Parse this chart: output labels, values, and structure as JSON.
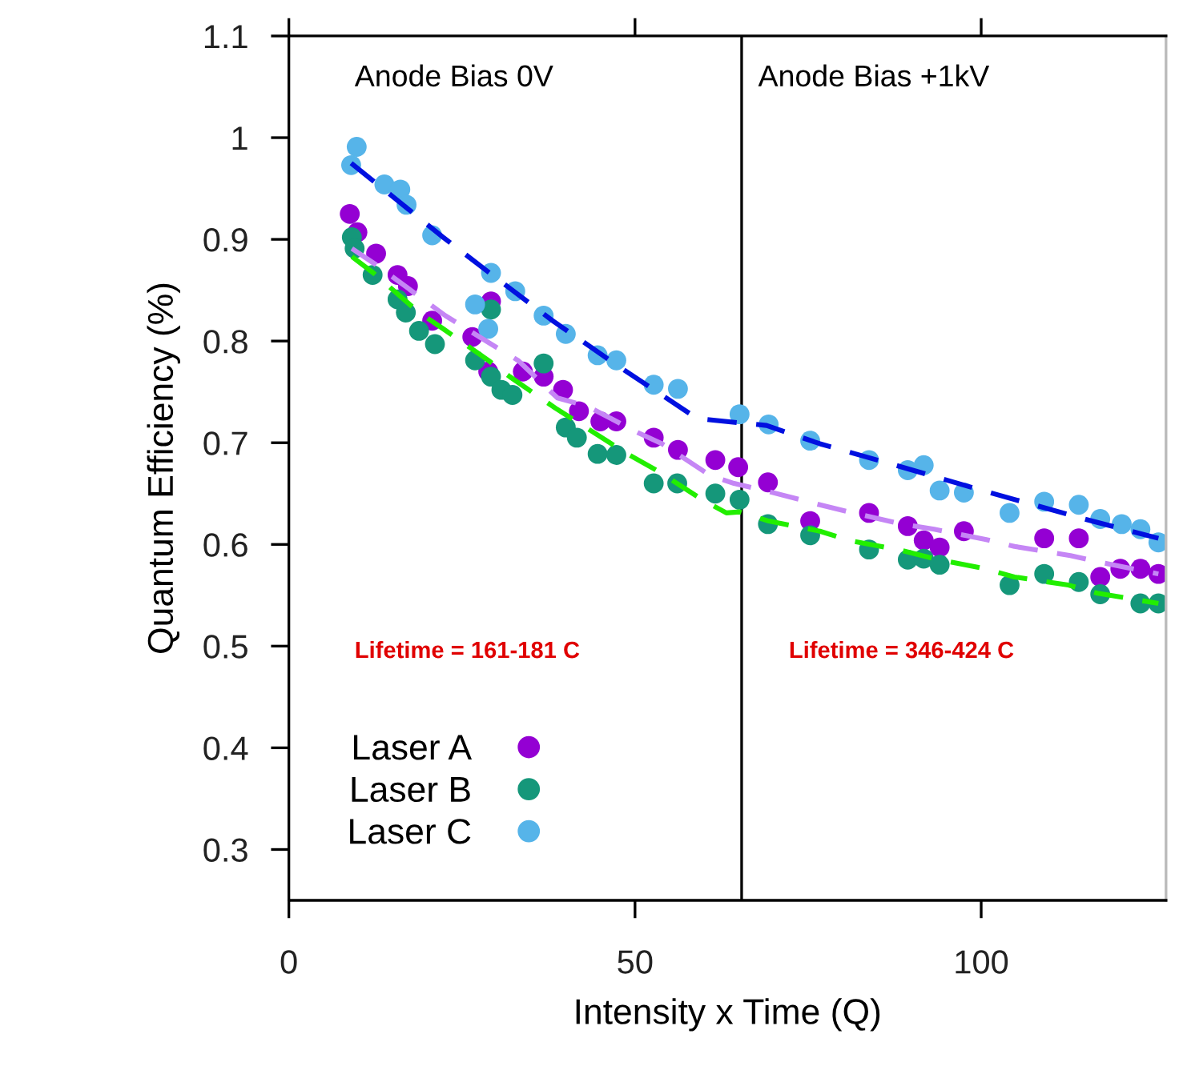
{
  "chart_data": {
    "type": "scatter",
    "xlabel": "Intensity x Time (Q)",
    "ylabel": "Quantum Efficiency (%)",
    "xlim": [
      0,
      126.7
    ],
    "ylim": [
      0.25,
      1.1
    ],
    "xticks": [
      0,
      50,
      100
    ],
    "yticks": [
      0.3,
      0.4,
      0.5,
      0.6,
      0.7,
      0.8,
      0.9,
      1,
      1.1
    ],
    "tick_labels": "xy",
    "grid": false,
    "legend": "bottom left",
    "marker": "circle",
    "ref_lines": [
      {
        "axis": "x",
        "value": 65.4,
        "color": "#000000"
      }
    ],
    "annotations": [
      "Anode Bias 0V",
      "Anode Bias +1kV",
      "Lifetime = 161-181 C",
      "Lifetime = 346-424 C"
    ],
    "series": [
      {
        "name": "Laser A",
        "color": "#9400d3",
        "x": [
          8.8,
          9.9,
          12.6,
          15.7,
          17.2,
          20.7,
          26.5,
          29.2,
          28.8,
          33.8,
          36.8,
          39.6,
          41.9,
          45.0,
          47.3,
          52.7,
          56.2,
          61.6,
          64.9,
          69.2,
          75.3,
          83.8,
          89.4,
          91.7,
          94.0,
          97.5,
          109.1,
          114.1,
          117.2,
          120.1,
          123.0,
          125.6
        ],
        "values": [
          0.925,
          0.907,
          0.886,
          0.865,
          0.854,
          0.82,
          0.804,
          0.839,
          0.77,
          0.77,
          0.765,
          0.752,
          0.731,
          0.721,
          0.721,
          0.705,
          0.693,
          0.683,
          0.676,
          0.661,
          0.623,
          0.631,
          0.618,
          0.604,
          0.597,
          0.613,
          0.606,
          0.606,
          0.568,
          0.576,
          0.576,
          0.571
        ]
      },
      {
        "name": "Laser B",
        "color": "#15977a",
        "x": [
          9.1,
          9.5,
          12.1,
          15.7,
          16.9,
          18.8,
          21.1,
          26.9,
          29.2,
          29.2,
          30.7,
          32.3,
          36.8,
          40.0,
          41.6,
          44.6,
          47.3,
          52.7,
          56.1,
          61.6,
          65.1,
          69.2,
          75.3,
          83.8,
          89.4,
          91.7,
          94.0,
          104.1,
          109.1,
          114.1,
          117.2,
          123.0,
          125.6
        ],
        "values": [
          0.902,
          0.891,
          0.865,
          0.841,
          0.828,
          0.81,
          0.797,
          0.781,
          0.831,
          0.765,
          0.752,
          0.747,
          0.778,
          0.715,
          0.705,
          0.689,
          0.688,
          0.66,
          0.66,
          0.65,
          0.644,
          0.62,
          0.609,
          0.595,
          0.585,
          0.586,
          0.58,
          0.56,
          0.571,
          0.563,
          0.551,
          0.542,
          0.542
        ]
      },
      {
        "name": "Laser C",
        "color": "#56b4e9",
        "x": [
          9.8,
          9.0,
          13.8,
          16.1,
          17.0,
          20.7,
          29.2,
          26.9,
          32.7,
          28.8,
          36.8,
          40.0,
          44.6,
          47.3,
          52.7,
          56.2,
          65.1,
          69.3,
          75.3,
          83.8,
          89.4,
          91.7,
          94.0,
          97.5,
          104.1,
          109.1,
          114.1,
          117.2,
          120.3,
          123.0,
          125.6
        ],
        "values": [
          0.991,
          0.973,
          0.954,
          0.949,
          0.934,
          0.904,
          0.867,
          0.836,
          0.849,
          0.812,
          0.825,
          0.807,
          0.786,
          0.781,
          0.757,
          0.753,
          0.728,
          0.718,
          0.702,
          0.683,
          0.673,
          0.678,
          0.653,
          0.651,
          0.631,
          0.642,
          0.639,
          0.625,
          0.62,
          0.615,
          0.602
        ]
      },
      {
        "type": "line",
        "line_style": "dashed",
        "marker": "none",
        "color": "#c586f5",
        "x": [
          9.1,
          12.6,
          18.8,
          22.6,
          29.2,
          33.1,
          38.8,
          43.1,
          50.4,
          53.9,
          60.8,
          64.3,
          69.3,
          76.7,
          80.9,
          88.6,
          93.2,
          100.6,
          104.8,
          112.9,
          116.8,
          125.6
        ],
        "values": [
          0.891,
          0.875,
          0.844,
          0.825,
          0.797,
          0.781,
          0.744,
          0.736,
          0.71,
          0.699,
          0.668,
          0.66,
          0.652,
          0.639,
          0.632,
          0.62,
          0.615,
          0.605,
          0.598,
          0.589,
          0.583,
          0.571
        ]
      },
      {
        "type": "line",
        "line_style": "dashed",
        "marker": "none",
        "color": "#22ee00",
        "x": [
          9.1,
          12.2,
          18.8,
          22.3,
          28.8,
          31.9,
          38.5,
          42.2,
          48.9,
          53.1,
          59.7,
          63.2,
          65.1,
          69.3,
          76.7,
          80.9,
          88.6,
          93.2,
          100.6,
          104.8,
          112.6,
          116.8,
          125.6
        ],
        "values": [
          0.883,
          0.867,
          0.828,
          0.812,
          0.781,
          0.765,
          0.734,
          0.718,
          0.689,
          0.673,
          0.644,
          0.631,
          0.632,
          0.623,
          0.613,
          0.604,
          0.594,
          0.586,
          0.576,
          0.568,
          0.56,
          0.552,
          0.542
        ]
      },
      {
        "type": "line",
        "line_style": "dashed",
        "marker": "none",
        "color": "#0010e0",
        "x": [
          9.0,
          22.3,
          28.4,
          38.1,
          48.1,
          58.5,
          60.1,
          69.0,
          76.7,
          88.6,
          100.2,
          116.0,
          125.6
        ],
        "values": [
          0.975,
          0.902,
          0.87,
          0.82,
          0.773,
          0.726,
          0.723,
          0.717,
          0.699,
          0.676,
          0.653,
          0.623,
          0.606
        ]
      }
    ]
  }
}
